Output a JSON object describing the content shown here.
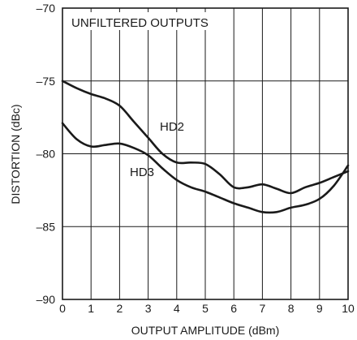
{
  "chart_data": {
    "type": "line",
    "title": "",
    "annotation": "UNFILTERED OUTPUTS",
    "xlabel": "OUTPUT AMPLITUDE (dBm)",
    "ylabel": "DISTORTION (dBc)",
    "xlim": [
      0,
      10
    ],
    "ylim": [
      -90,
      -70
    ],
    "x_ticks": [
      0,
      1,
      2,
      3,
      4,
      5,
      6,
      7,
      8,
      9,
      10
    ],
    "y_ticks": [
      -70,
      -75,
      -80,
      -85,
      -90
    ],
    "x_tick_labels": [
      "0",
      "1",
      "2",
      "3",
      "4",
      "5",
      "6",
      "7",
      "8",
      "9",
      "10"
    ],
    "y_tick_labels": [
      "–70",
      "–75",
      "–80",
      "–85",
      "–90"
    ],
    "grid": true,
    "series": [
      {
        "name": "HD2",
        "x": [
          0,
          0.5,
          1,
          1.5,
          2,
          2.5,
          3,
          3.5,
          4,
          4.5,
          5,
          5.5,
          6,
          6.5,
          7,
          7.5,
          8,
          8.5,
          9,
          9.5,
          10
        ],
        "y": [
          -75.0,
          -75.5,
          -75.9,
          -76.2,
          -76.7,
          -77.8,
          -78.9,
          -80.0,
          -80.6,
          -80.6,
          -80.7,
          -81.4,
          -82.3,
          -82.3,
          -82.1,
          -82.4,
          -82.7,
          -82.3,
          -82.0,
          -81.6,
          -81.2
        ]
      },
      {
        "name": "HD3",
        "x": [
          0,
          0.5,
          1,
          1.5,
          2,
          2.5,
          3,
          3.5,
          4,
          4.5,
          5,
          5.5,
          6,
          6.5,
          7,
          7.5,
          8,
          8.5,
          9,
          9.5,
          10
        ],
        "y": [
          -77.9,
          -79.0,
          -79.5,
          -79.4,
          -79.3,
          -79.6,
          -80.1,
          -81.0,
          -81.8,
          -82.3,
          -82.6,
          -83.0,
          -83.4,
          -83.7,
          -84.0,
          -84.0,
          -83.7,
          -83.5,
          -83.1,
          -82.2,
          -80.8
        ]
      }
    ]
  }
}
